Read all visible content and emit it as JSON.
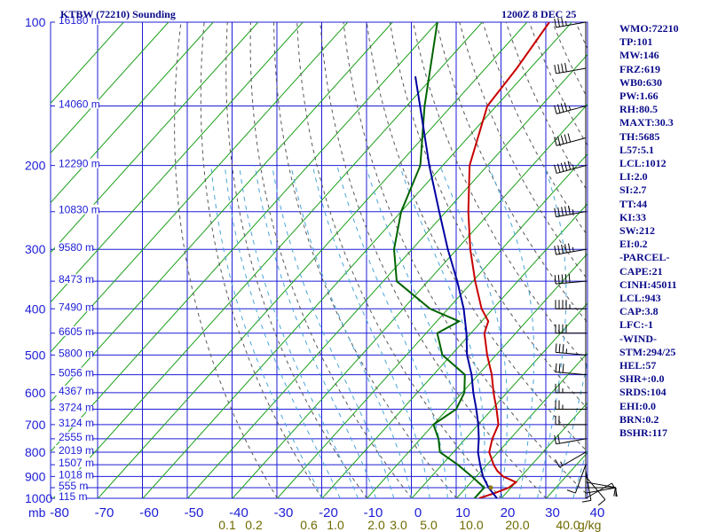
{
  "header": {
    "station": "KTBW (72210) Sounding",
    "timestamp": "1200Z  8 DEC 25"
  },
  "chart_data": {
    "type": "skew-t",
    "pressure_unit": "mb",
    "mixing_ratio_unit": "g/kg",
    "pressure_levels": [
      100,
      200,
      300,
      400,
      500,
      600,
      700,
      800,
      900,
      1000
    ],
    "temperature_ticks": [
      -80,
      -70,
      -60,
      -50,
      -40,
      -30,
      -20,
      -10,
      0,
      10,
      20,
      30,
      40
    ],
    "mixing_ratio_ticks": [
      "0.1",
      "0.2",
      "0.6",
      "1.0",
      "2.0",
      "3.0",
      "5.0",
      "10.0",
      "20.0",
      "40.0"
    ],
    "height_labels": [
      {
        "p": 100,
        "h": "16180 m"
      },
      {
        "p": 150,
        "h": "14060 m"
      },
      {
        "p": 200,
        "h": "12290 m"
      },
      {
        "p": 250,
        "h": "10830 m"
      },
      {
        "p": 300,
        "h": "9580 m"
      },
      {
        "p": 350,
        "h": "8473 m"
      },
      {
        "p": 400,
        "h": "7490 m"
      },
      {
        "p": 450,
        "h": "6605 m"
      },
      {
        "p": 500,
        "h": "5800 m"
      },
      {
        "p": 550,
        "h": "5056 m"
      },
      {
        "p": 600,
        "h": "4367 m"
      },
      {
        "p": 650,
        "h": "3724 m"
      },
      {
        "p": 700,
        "h": "3124 m"
      },
      {
        "p": 750,
        "h": "2555 m"
      },
      {
        "p": 800,
        "h": "2019 m"
      },
      {
        "p": 850,
        "h": "1507 m"
      },
      {
        "p": 900,
        "h": "1018 m"
      },
      {
        "p": 950,
        "h": "555 m"
      },
      {
        "p": 1000,
        "h": "115 m"
      }
    ],
    "series": [
      {
        "type": "temperature",
        "color": "#c80000",
        "points": [
          [
            1000,
            15.0
          ],
          [
            975,
            17.5
          ],
          [
            950,
            19.5
          ],
          [
            925,
            20.0
          ],
          [
            900,
            16.0
          ],
          [
            875,
            13.5
          ],
          [
            850,
            11.5
          ],
          [
            800,
            8.0
          ],
          [
            750,
            6.0
          ],
          [
            700,
            4.5
          ],
          [
            650,
            1.0
          ],
          [
            600,
            -3.0
          ],
          [
            550,
            -7.0
          ],
          [
            500,
            -12.0
          ],
          [
            450,
            -17.0
          ],
          [
            425,
            -18.5
          ],
          [
            400,
            -22.5
          ],
          [
            350,
            -29.5
          ],
          [
            300,
            -37.0
          ],
          [
            250,
            -45.0
          ],
          [
            200,
            -54.0
          ],
          [
            150,
            -62.0
          ],
          [
            125,
            -63.0
          ],
          [
            100,
            -65.0
          ]
        ]
      },
      {
        "type": "dewpoint",
        "color": "#006400",
        "points": [
          [
            1000,
            14.0
          ],
          [
            975,
            14.0
          ],
          [
            950,
            14.0
          ],
          [
            900,
            9.0
          ],
          [
            850,
            3.5
          ],
          [
            800,
            -3.0
          ],
          [
            750,
            -6.0
          ],
          [
            700,
            -10.0
          ],
          [
            650,
            -8.0
          ],
          [
            600,
            -9.5
          ],
          [
            550,
            -13.0
          ],
          [
            500,
            -22.0
          ],
          [
            450,
            -27.5
          ],
          [
            425,
            -25.0
          ],
          [
            400,
            -34.0
          ],
          [
            350,
            -47.0
          ],
          [
            300,
            -54.0
          ],
          [
            250,
            -60.0
          ],
          [
            200,
            -65.0
          ],
          [
            150,
            -76.0
          ],
          [
            100,
            -90.0
          ]
        ]
      },
      {
        "type": "parcel",
        "color": "#0000a0",
        "points": [
          [
            1000,
            19.0
          ],
          [
            950,
            15.0
          ],
          [
            900,
            11.5
          ],
          [
            850,
            8.5
          ],
          [
            800,
            5.5
          ],
          [
            750,
            3.0
          ],
          [
            700,
            0.0
          ],
          [
            650,
            -3.5
          ],
          [
            600,
            -7.5
          ],
          [
            550,
            -11.5
          ],
          [
            500,
            -16.5
          ],
          [
            450,
            -21.0
          ],
          [
            400,
            -26.5
          ],
          [
            350,
            -33.5
          ],
          [
            300,
            -42.0
          ],
          [
            250,
            -51.5
          ],
          [
            200,
            -63.0
          ],
          [
            150,
            -77.0
          ],
          [
            130,
            -84.0
          ]
        ]
      }
    ],
    "wind_barbs": [
      {
        "p": 1000,
        "dir": 60,
        "spd": 5
      },
      {
        "p": 975,
        "dir": 80,
        "spd": 10
      },
      {
        "p": 950,
        "dir": 90,
        "spd": 10
      },
      {
        "p": 925,
        "dir": 100,
        "spd": 10
      },
      {
        "p": 900,
        "dir": 140,
        "spd": 10
      },
      {
        "p": 875,
        "dir": 170,
        "spd": 10
      },
      {
        "p": 850,
        "dir": 200,
        "spd": 10
      },
      {
        "p": 800,
        "dir": 240,
        "spd": 15
      },
      {
        "p": 750,
        "dir": 260,
        "spd": 20
      },
      {
        "p": 700,
        "dir": 270,
        "spd": 20
      },
      {
        "p": 650,
        "dir": 270,
        "spd": 25
      },
      {
        "p": 600,
        "dir": 270,
        "spd": 25
      },
      {
        "p": 550,
        "dir": 275,
        "spd": 30
      },
      {
        "p": 500,
        "dir": 275,
        "spd": 35
      },
      {
        "p": 450,
        "dir": 270,
        "spd": 40
      },
      {
        "p": 400,
        "dir": 270,
        "spd": 45
      },
      {
        "p": 350,
        "dir": 265,
        "spd": 50
      },
      {
        "p": 300,
        "dir": 260,
        "spd": 55
      },
      {
        "p": 250,
        "dir": 260,
        "spd": 55
      },
      {
        "p": 200,
        "dir": 255,
        "spd": 55
      },
      {
        "p": 175,
        "dir": 255,
        "spd": 50
      },
      {
        "p": 150,
        "dir": 255,
        "spd": 45
      },
      {
        "p": 125,
        "dir": 260,
        "spd": 40
      },
      {
        "p": 100,
        "dir": 260,
        "spd": 35
      }
    ],
    "grid": true
  },
  "indices": [
    "WMO:72210",
    "TP:101",
    "MW:146",
    "FRZ:619",
    "WB0:630",
    "PW:1.66",
    "RH:80.5",
    "MAXT:30.3",
    "TH:5685",
    "L57:5.1",
    "LCL:1012",
    "LI:2.0",
    "SI:2.7",
    "TT:44",
    "KI:33",
    "SW:212",
    "EI:0.2",
    "-PARCEL-",
    "CAPE:21",
    "CINH:45011",
    "LCL:943",
    "CAP:3.8",
    "LFC:-1",
    "-WIND-",
    "STM:294/25",
    "HEL:57",
    "SHR+:0.0",
    "SRDS:104",
    "EHI:0.0",
    "BRN:0.2",
    "BSHR:117"
  ]
}
